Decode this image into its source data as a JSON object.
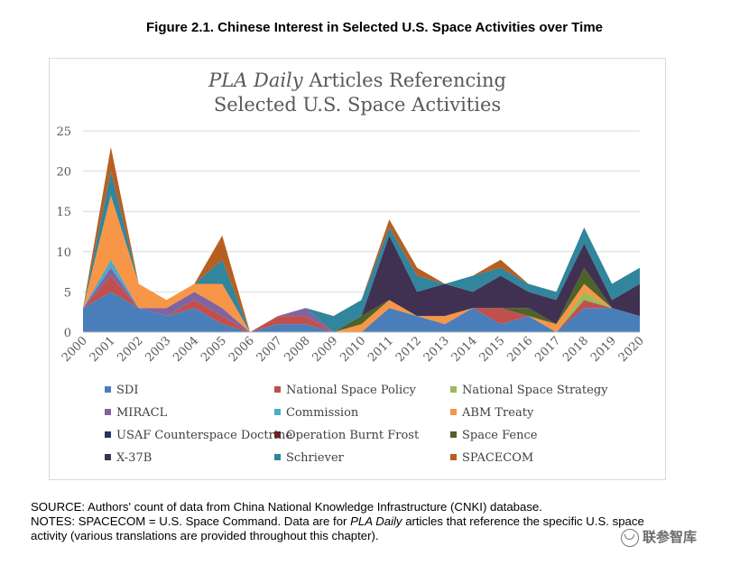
{
  "figure": {
    "title": "Figure 2.1. Chinese Interest in Selected U.S. Space Activities over Time"
  },
  "source_note": "SOURCE: Authors' count of data from China National Knowledge Infrastructure (CNKI) database.",
  "notes": {
    "prefix": "NOTES: SPACECOM = U.S. Space Command. Data are for ",
    "pla": "PLA Daily",
    "line1_suffix": " articles that reference the specific U.S. space",
    "line2": "activity (various translations are provided throughout this chapter)."
  },
  "watermark": "联参智库",
  "chart_data": {
    "type": "area",
    "stacked": true,
    "title_italic": "PLA Daily",
    "title_rest": " Articles Referencing",
    "title_line2": "Selected U.S. Space Activities",
    "xlabel": "",
    "ylabel": "",
    "ylim": [
      0,
      25
    ],
    "yticks": [
      0,
      5,
      10,
      15,
      20,
      25
    ],
    "grid": "horizontal",
    "legend_position": "bottom",
    "x": [
      "2000",
      "2001",
      "2002",
      "2003",
      "2004",
      "2005",
      "2006",
      "2007",
      "2008",
      "2009",
      "2010",
      "2011",
      "2012",
      "2013",
      "2014",
      "2015",
      "2016",
      "2017",
      "2018",
      "2019",
      "2020"
    ],
    "series": [
      {
        "name": "SDI",
        "color": "#4a7ebb",
        "values": [
          3,
          5,
          3,
          2,
          3,
          1,
          0,
          1,
          1,
          0,
          0,
          3,
          2,
          1,
          3,
          1,
          2,
          0,
          3,
          3,
          2
        ]
      },
      {
        "name": "National Space Policy",
        "color": "#c0504d",
        "values": [
          0,
          2,
          0,
          0,
          1,
          1,
          0,
          1,
          1,
          0,
          0,
          0,
          0,
          0,
          0,
          2,
          0,
          0,
          1,
          0,
          0
        ]
      },
      {
        "name": "National Space Strategy",
        "color": "#9bbb59",
        "values": [
          0,
          0,
          0,
          0,
          0,
          0,
          0,
          0,
          0,
          0,
          0,
          0,
          0,
          0,
          0,
          0,
          0,
          0,
          1,
          0,
          0
        ]
      },
      {
        "name": "MIRACL",
        "color": "#8064a2",
        "values": [
          0,
          1,
          0,
          1,
          1,
          1,
          0,
          0,
          1,
          0,
          0,
          0,
          0,
          0,
          0,
          0,
          0,
          0,
          0,
          0,
          0
        ]
      },
      {
        "name": "Commission",
        "color": "#4bacc6",
        "values": [
          0,
          1,
          0,
          0,
          0,
          0,
          0,
          0,
          0,
          0,
          0,
          0,
          0,
          0,
          0,
          0,
          0,
          0,
          0,
          0,
          0
        ]
      },
      {
        "name": "ABM Treaty",
        "color": "#f79646",
        "values": [
          0,
          8,
          3,
          1,
          1,
          3,
          0,
          0,
          0,
          0,
          1,
          1,
          0,
          1,
          0,
          0,
          0,
          1,
          1,
          0,
          0
        ]
      },
      {
        "name": "USAF Counterspace Doctrine",
        "color": "#1f3864",
        "values": [
          0,
          0,
          0,
          0,
          0,
          0,
          0,
          0,
          0,
          0,
          0,
          0,
          0,
          0,
          0,
          0,
          0,
          0,
          0,
          0,
          0
        ]
      },
      {
        "name": "Operation Burnt Frost",
        "color": "#632523",
        "values": [
          0,
          0,
          0,
          0,
          0,
          0,
          0,
          0,
          0,
          0,
          0,
          0,
          0,
          0,
          0,
          0,
          0,
          0,
          0,
          0,
          0
        ]
      },
      {
        "name": "Space Fence",
        "color": "#4f6228",
        "values": [
          0,
          0,
          0,
          0,
          0,
          0,
          0,
          0,
          0,
          0,
          1,
          0,
          0,
          0,
          0,
          0,
          1,
          0,
          2,
          0,
          0
        ]
      },
      {
        "name": "X-37B",
        "color": "#403152",
        "values": [
          0,
          0,
          0,
          0,
          0,
          0,
          0,
          0,
          0,
          0,
          0,
          8,
          3,
          4,
          2,
          4,
          2,
          3,
          3,
          1,
          4
        ]
      },
      {
        "name": "Schriever",
        "color": "#31859c",
        "values": [
          0,
          3,
          0,
          0,
          0,
          3,
          0,
          0,
          0,
          2,
          2,
          1,
          2,
          0,
          2,
          1,
          1,
          1,
          2,
          2,
          2
        ]
      },
      {
        "name": "SPACECOM",
        "color": "#b75f21",
        "values": [
          0,
          3,
          0,
          0,
          0,
          3,
          0,
          0,
          0,
          0,
          0,
          1,
          1,
          0,
          0,
          1,
          0,
          0,
          0,
          0,
          0
        ]
      }
    ]
  }
}
